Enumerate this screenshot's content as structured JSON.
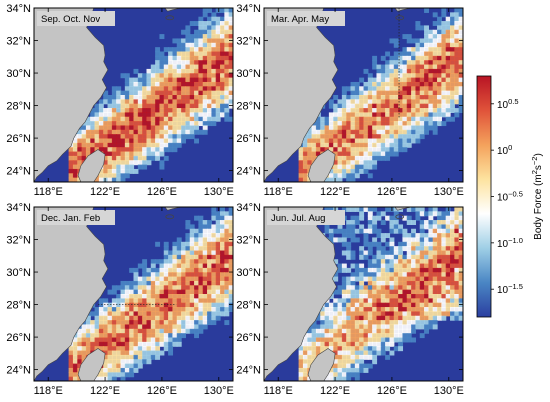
{
  "figure": {
    "panels": [
      {
        "season": "Sep. Oct. Nov",
        "variant": "son"
      },
      {
        "season": "Mar. Apr. May",
        "variant": "mam"
      },
      {
        "season": "Dec. Jan. Feb",
        "variant": "djf"
      },
      {
        "season": "Jun. Jul. Aug",
        "variant": "jja"
      }
    ],
    "lat_ticks": [
      "34°N",
      "32°N",
      "30°N",
      "28°N",
      "26°N",
      "24°N"
    ],
    "lon_ticks": [
      "118°E",
      "122°E",
      "126°E",
      "130°E"
    ],
    "colorbar": {
      "title": "Body Force (m",
      "title_sup1": "2",
      "title_mid": "s",
      "title_sup2": "−2",
      "title_end": ")",
      "ticks": [
        {
          "base": "10",
          "exp": "0.5"
        },
        {
          "base": "10",
          "exp": "0"
        },
        {
          "base": "10",
          "exp": "−0.5"
        },
        {
          "base": "10",
          "exp": "−1.0"
        },
        {
          "base": "10",
          "exp": "−1.5"
        }
      ],
      "log_range": [
        -1.8,
        0.8
      ],
      "tick_log_values": [
        0.5,
        0,
        -0.5,
        -1.0,
        -1.5
      ],
      "colors": [
        "#2b3fa0",
        "#4a86c4",
        "#9fcfe6",
        "#ffffff",
        "#fde3a0",
        "#f4a25c",
        "#e0533a",
        "#b81424"
      ]
    },
    "colors": {
      "ocean": "#2a3b9c",
      "land": "#c4c4c4"
    }
  }
}
